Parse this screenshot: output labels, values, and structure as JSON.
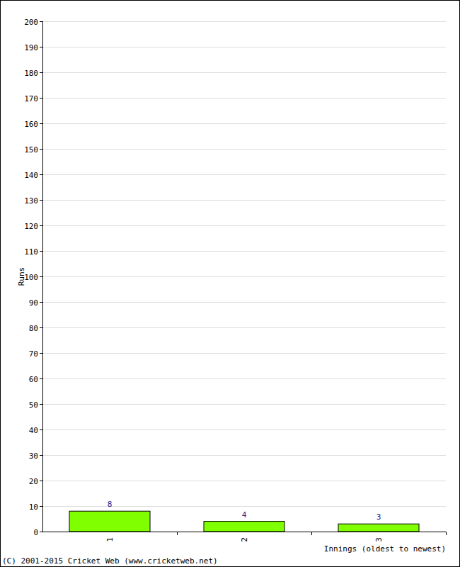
{
  "chart_data": {
    "type": "bar",
    "x_label": "Innings (oldest to newest)",
    "y_label": "Runs",
    "annotations": [
      "(C) 2001-2015 Cricket Web (www.cricketweb.net)"
    ],
    "categories": [
      "1",
      "2",
      "3"
    ],
    "values": [
      8,
      4,
      3
    ],
    "color": "#80ff00",
    "ylim": [
      0,
      200
    ],
    "yticks": [
      0,
      10,
      20,
      30,
      40,
      50,
      60,
      70,
      80,
      90,
      100,
      110,
      120,
      130,
      140,
      150,
      160,
      170,
      180,
      190,
      200
    ],
    "grid": true,
    "data_labels": true
  }
}
